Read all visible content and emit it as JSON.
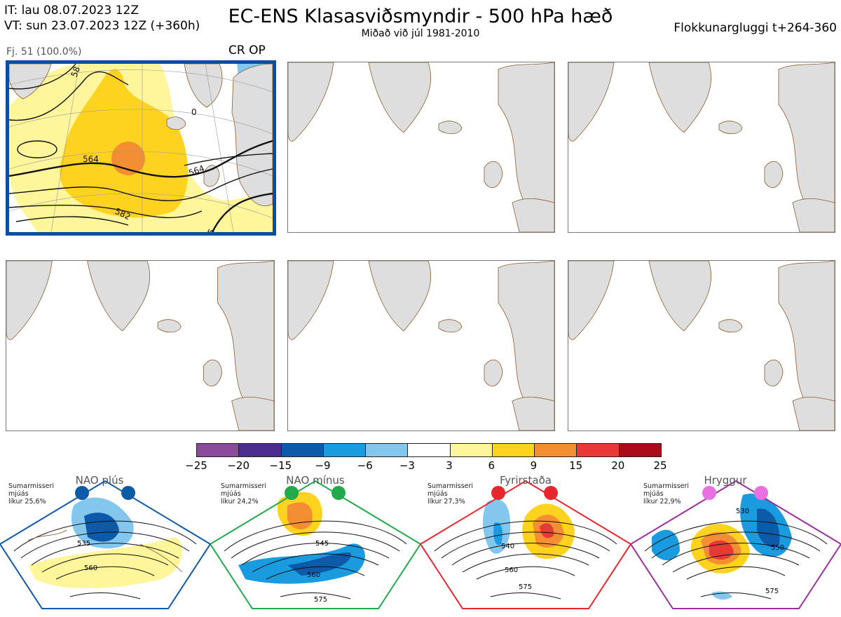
{
  "header": {
    "it_line": "IT: lau 08.07.2023 12Z",
    "vt_line": "VT: sun 23.07.2023 12Z  (+360h)",
    "title": "EC-ENS Klasasviðsmyndir - 500 hPa hæð",
    "subtitle": "Miðað við júl 1981-2010",
    "window": "Flokkunargluggi t+264-360"
  },
  "main_panel": {
    "label": "Fj. 51 (100.0%)",
    "tag": "CR OP",
    "contour_labels": [
      "564",
      "564",
      "582",
      "58",
      "0",
      "5"
    ]
  },
  "empty_panels": [
    "panel-2",
    "panel-3",
    "panel-4",
    "panel-5",
    "panel-6"
  ],
  "colors": {
    "border_active": "#0a4f9f",
    "land": "#dedede",
    "coast": "#8b5a2b",
    "palette": [
      "#8a4a9e",
      "#4a2d8e",
      "#0d5aa8",
      "#1a9be0",
      "#84c7ee",
      "#ffffff",
      "#fff59a",
      "#fed320",
      "#f38e32",
      "#e83a35",
      "#a90d1a"
    ]
  },
  "chart_data": {
    "type": "heatmap",
    "title": "EC-ENS Klasasviðsmyndir - 500 hPa hæð",
    "colorbar": {
      "ticks": [
        "−25",
        "−20",
        "−15",
        "−9",
        "−6",
        "−3",
        "3",
        "6",
        "9",
        "15",
        "20",
        "25"
      ],
      "values": [
        -25,
        -20,
        -15,
        -9,
        -6,
        -3,
        3,
        6,
        9,
        15,
        20,
        25
      ]
    },
    "regimes": [
      {
        "name": "NAO plús",
        "season": "Sumarmisseri",
        "smoothing": "mjúás",
        "probability": "líkur 25,6%",
        "color": "#0d5aa8",
        "labels": [
          "535",
          "560"
        ]
      },
      {
        "name": "NAO mínus",
        "season": "Sumarmisseri",
        "smoothing": "mjúás",
        "probability": "líkur 24,2%",
        "color": "#22aa4a",
        "labels": [
          "545",
          "560",
          "575"
        ]
      },
      {
        "name": "Fyrirstaða",
        "season": "Sumarmisseri",
        "smoothing": "mjúás",
        "probability": "líkur 27,3%",
        "color": "#e8262b",
        "labels": [
          "540",
          "560",
          "575"
        ]
      },
      {
        "name": "Hryggur",
        "season": "Sumarmisseri",
        "smoothing": "mjúás",
        "probability": "líkur 22,9%",
        "color": "#e870e0",
        "labels": [
          "530",
          "550",
          "575"
        ]
      }
    ]
  }
}
